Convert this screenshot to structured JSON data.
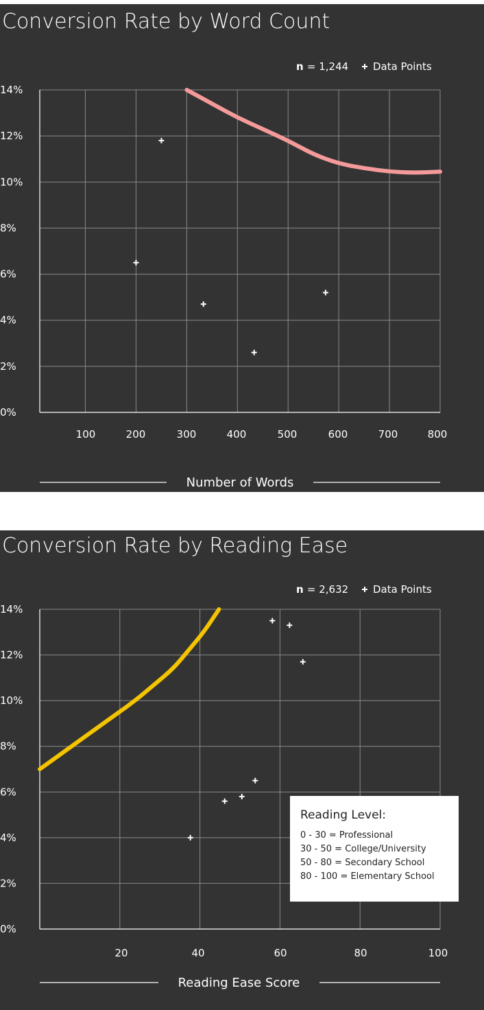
{
  "chart_data": [
    {
      "type": "scatter",
      "title": "Conversion Rate by Word Count",
      "xlabel": "Number of Words",
      "ylabel": "",
      "xlim": [
        10,
        800
      ],
      "ylim": [
        0,
        14
      ],
      "x_ticks": [
        "100",
        "200",
        "300",
        "400",
        "500",
        "600",
        "700",
        "800"
      ],
      "y_ticks": [
        "0%",
        "2%",
        "4%",
        "6%",
        "8%",
        "10%",
        "12%",
        "14%"
      ],
      "legend": {
        "n_label": "n",
        "n_value": "= 1,244",
        "marker_label": "Data Points",
        "placement": "top-right"
      },
      "series": [
        {
          "name": "Data Points",
          "kind": "scatter",
          "points": [
            [
              200,
              6.5
            ],
            [
              250,
              11.8
            ],
            [
              333,
              4.7
            ],
            [
              433,
              2.6
            ],
            [
              574,
              5.2
            ]
          ]
        },
        {
          "kind": "line",
          "color": "#f59a9a",
          "points": [
            [
              300,
              14.0
            ],
            [
              350,
              13.4
            ],
            [
              400,
              12.8
            ],
            [
              450,
              12.3
            ],
            [
              500,
              11.8
            ],
            [
              550,
              11.2
            ],
            [
              600,
              10.8
            ],
            [
              650,
              10.6
            ],
            [
              700,
              10.45
            ],
            [
              750,
              10.4
            ],
            [
              800,
              10.45
            ]
          ]
        }
      ]
    },
    {
      "type": "scatter",
      "title": "Conversion Rate by Reading Ease",
      "xlabel": "Reading Ease Score",
      "ylabel": "",
      "xlim": [
        0,
        105
      ],
      "ylim": [
        0,
        14
      ],
      "x_ticks": [
        "20",
        "40",
        "60",
        "80",
        "100"
      ],
      "y_ticks": [
        "0%",
        "2%",
        "4%",
        "6%",
        "8%",
        "10%",
        "12%",
        "14%"
      ],
      "legend": {
        "n_label": "n",
        "n_value": "= 2,632",
        "marker_label": "Data Points",
        "placement": "top-right"
      },
      "series": [
        {
          "name": "Data Points",
          "kind": "scatter",
          "points": [
            [
              39.5,
              4.0
            ],
            [
              48.5,
              5.6
            ],
            [
              53,
              5.8
            ],
            [
              56.5,
              6.5
            ],
            [
              61,
              13.5
            ],
            [
              65.5,
              13.3
            ],
            [
              69,
              11.7
            ]
          ]
        },
        {
          "kind": "line",
          "color": "#f5c400",
          "points": [
            [
              0,
              7.0
            ],
            [
              5,
              7.6
            ],
            [
              10,
              8.2
            ],
            [
              15,
              8.8
            ],
            [
              20,
              9.4
            ],
            [
              25,
              10.0
            ],
            [
              30,
              10.7
            ],
            [
              35,
              11.4
            ],
            [
              39,
              12.2
            ],
            [
              43,
              13.0
            ],
            [
              47,
              14.0
            ]
          ]
        }
      ],
      "annotation": {
        "title": "Reading Level:",
        "items": [
          "0 - 30 = Professional",
          "30 - 50 = College/University",
          "50 - 80 = Secondary School",
          "80 - 100 = Elementary School"
        ]
      }
    }
  ]
}
